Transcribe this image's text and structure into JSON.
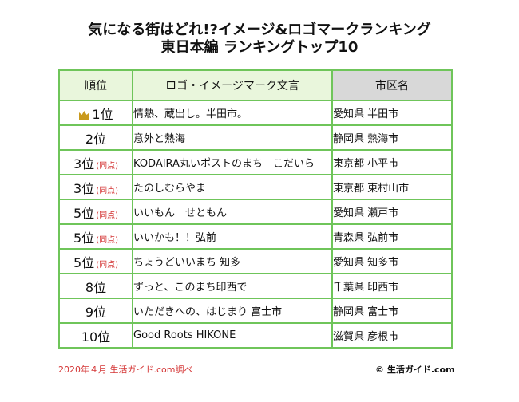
{
  "title": {
    "line1": "気になる街はどれ!?イメージ&ロゴマークランキング",
    "line2": "東日本編 ランキングトップ10"
  },
  "table": {
    "headers": {
      "rank": "順位",
      "phrase": "ロゴ・イメージマーク文言",
      "city": "市区名"
    },
    "rows": [
      {
        "rank": "1位",
        "tie": "",
        "phrase": "情熱、蔵出し。半田市。",
        "city": "愛知県 半田市"
      },
      {
        "rank": "2位",
        "tie": "",
        "phrase": "意外と熱海",
        "city": "静岡県 熱海市"
      },
      {
        "rank": "3位",
        "tie": "(同点)",
        "phrase": "KODAIRA丸いポストのまち　こだいら",
        "city": "東京都 小平市"
      },
      {
        "rank": "3位",
        "tie": "(同点)",
        "phrase": "たのしむらやま",
        "city": "東京都 東村山市"
      },
      {
        "rank": "5位",
        "tie": "(同点)",
        "phrase": "いいもん　せともん",
        "city": "愛知県 瀬戸市"
      },
      {
        "rank": "5位",
        "tie": "(同点)",
        "phrase": "いいかも！！弘前",
        "city": "青森県 弘前市"
      },
      {
        "rank": "5位",
        "tie": "(同点)",
        "phrase": "ちょうどいいまち 知多",
        "city": "愛知県 知多市"
      },
      {
        "rank": "8位",
        "tie": "",
        "phrase": "ずっと、このまち印西で",
        "city": "千葉県 印西市"
      },
      {
        "rank": "9位",
        "tie": "",
        "phrase": "いただきへの、はじまり 富士市",
        "city": "静岡県 富士市"
      },
      {
        "rank": "10位",
        "tie": "",
        "phrase": "Good Roots HIKONE",
        "city": "滋賀県 彦根市"
      }
    ]
  },
  "footer": {
    "source": "2020年４月 生活ガイド.com調べ",
    "copyright": "© 生活ガイド.com"
  },
  "colors": {
    "border": "#6fc55a",
    "header_green": "#e9f6dc",
    "header_gray": "#d8d8d8",
    "tie_red": "#d43535",
    "crown_gold": "#c99a1e"
  },
  "icons": {
    "first_place": "crown-icon"
  }
}
